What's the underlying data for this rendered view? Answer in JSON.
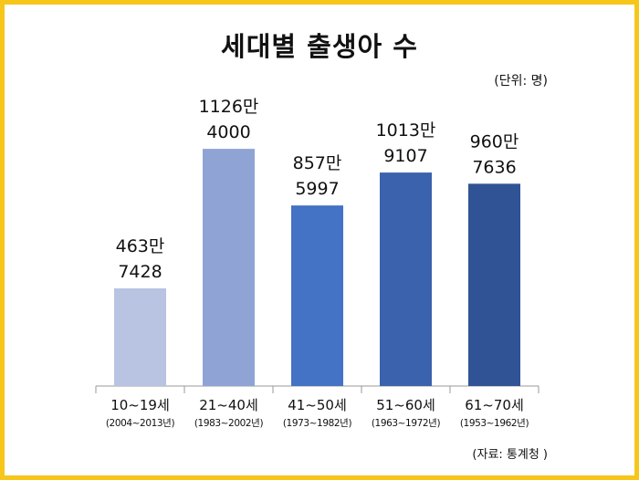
{
  "title": "세대별 출생아 수",
  "unit": "(단위: 명)",
  "source": "(자료: 통계청 )",
  "chart_data": {
    "type": "bar",
    "title": "세대별 출생아 수",
    "xlabel": "",
    "ylabel": "",
    "unit": "(단위: 명)",
    "categories": [
      "10~19세",
      "21~40세",
      "41~50세",
      "51~60세",
      "61~70세"
    ],
    "category_years": [
      "(2004~2013년)",
      "(1983~2002년)",
      "(1973~1982년)",
      "(1963~1972년)",
      "(1953~1962년)"
    ],
    "values": [
      4637428,
      11264000,
      8575997,
      10139107,
      9607636
    ],
    "data_labels": [
      [
        "463만",
        "7428"
      ],
      [
        "1126만",
        "4000"
      ],
      [
        "857만",
        "5997"
      ],
      [
        "1013만",
        "9107"
      ],
      [
        "960만",
        "7636"
      ]
    ],
    "bar_colors": [
      "#B9C3E2",
      "#8FA3D5",
      "#4472C4",
      "#3B62AC",
      "#2F5395"
    ],
    "ylim": [
      0,
      14000000
    ],
    "grid": false,
    "legend": "none"
  }
}
